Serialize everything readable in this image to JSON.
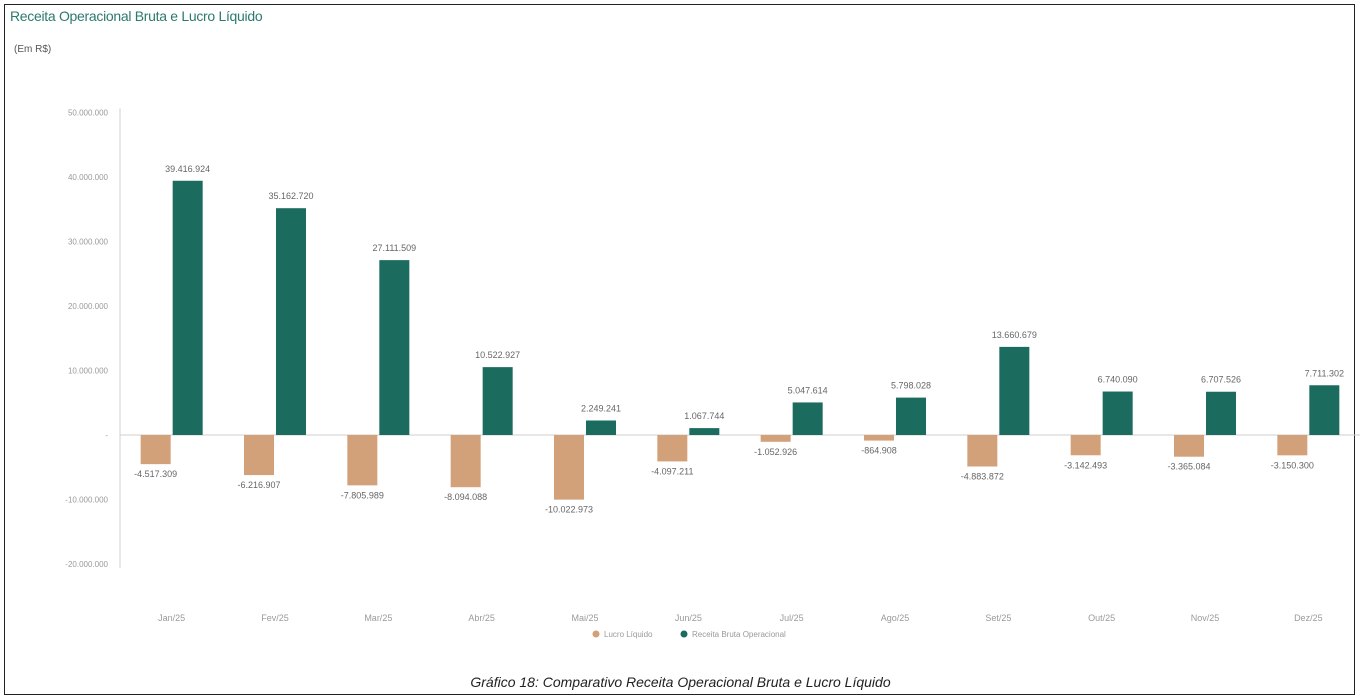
{
  "title": "Receita Operacional Bruta e Lucro Líquido",
  "subtitle": "(Em R$)",
  "caption": "Gráfico 18: Comparativo Receita Operacional Bruta e Lucro Líquido",
  "chart_data": {
    "type": "bar",
    "categories": [
      "Jan/25",
      "Fev/25",
      "Mar/25",
      "Abr/25",
      "Mai/25",
      "Jun/25",
      "Jul/25",
      "Ago/25",
      "Set/25",
      "Out/25",
      "Nov/25",
      "Dez/25"
    ],
    "series": [
      {
        "name": "Lucro Líquido",
        "color": "#d2a079",
        "values": [
          -4517309,
          -6216907,
          -7805989,
          -8094088,
          -10022973,
          -4097211,
          -1052926,
          -864908,
          -4883872,
          -3142493,
          -3365084,
          -3150300
        ],
        "labels": [
          "-4.517.309",
          "-6.216.907",
          "-7.805.989",
          "-8.094.088",
          "-10.022.973",
          "-4.097.211",
          "-1.052.926",
          "-864.908",
          "-4.883.872",
          "-3.142.493",
          "-3.365.084",
          "-3.150.300"
        ]
      },
      {
        "name": "Receita Bruta Operacional",
        "color": "#1b6b5f",
        "values": [
          39416924,
          35162720,
          27111509,
          10522927,
          2249241,
          1067744,
          5047614,
          5798028,
          13660679,
          6740090,
          6707526,
          7711302
        ],
        "labels": [
          "39.416.924",
          "35.162.720",
          "27.111.509",
          "10.522.927",
          "2.249.241",
          "1.067.744",
          "5.047.614",
          "5.798.028",
          "13.660.679",
          "6.740.090",
          "6.707.526",
          "7.711.302"
        ]
      }
    ],
    "ylim": [
      -20000000,
      50000000
    ],
    "yticks": [
      50000000,
      40000000,
      30000000,
      20000000,
      10000000,
      0,
      -10000000,
      -20000000
    ],
    "ytick_labels": [
      "50.000.000",
      "40.000.000",
      "30.000.000",
      "20.000.000",
      "10.000.000",
      "-",
      "-10.000.000",
      "-20.000.000"
    ],
    "grid": false,
    "legend": "bottom-center"
  }
}
